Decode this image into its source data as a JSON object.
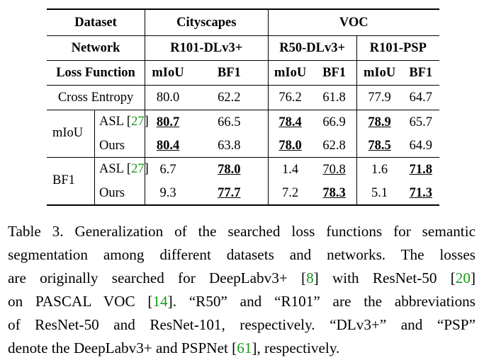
{
  "table": {
    "header": {
      "dataset_label": "Dataset",
      "cityscapes": "Cityscapes",
      "voc": "VOC",
      "network_label": "Network",
      "net1": "R101-DLv3+",
      "net2": "R50-DLv3+",
      "net3": "R101-PSP",
      "loss_label": "Loss Function",
      "miou": "mIoU",
      "bf1": "BF1"
    },
    "cross_entropy": {
      "label": "Cross Entropy",
      "values": [
        "80.0",
        "62.2",
        "76.2",
        "61.8",
        "77.9",
        "64.7"
      ]
    },
    "group_miou": {
      "label": "mIoU",
      "asl": {
        "name": "ASL [",
        "cite": "27",
        "close": "]",
        "values": [
          "80.7",
          "66.5",
          "78.4",
          "66.9",
          "78.9",
          "65.7"
        ]
      },
      "ours": {
        "name": "Ours",
        "values": [
          "80.4",
          "63.8",
          "78.0",
          "62.8",
          "78.5",
          "64.9"
        ]
      }
    },
    "group_bf1": {
      "label": "BF1",
      "asl": {
        "name": "ASL [",
        "cite": "27",
        "close": "]",
        "values": [
          "6.7",
          "78.0",
          "1.4",
          "70.8",
          "1.6",
          "71.8"
        ]
      },
      "ours": {
        "name": "Ours",
        "values": [
          "9.3",
          "77.7",
          "7.2",
          "78.3",
          "5.1",
          "71.3"
        ]
      }
    }
  },
  "caption": {
    "l1": "Table 3. Generalization of the searched loss functions for semantic",
    "l2": "segmentation among different datasets and networks.  The losses",
    "l3a": "are originally searched for DeepLabv3+ [",
    "l3c1": "8",
    "l3b": "] with ResNet-50 [",
    "l3c2": "20",
    "l3d": "]",
    "l4a": "on PASCAL VOC [",
    "l4c": "14",
    "l4b": "].  “R50” and “R101” are the abbreviations",
    "l5": "of ResNet-50 and ResNet-101, respectively.  “DLv3+” and “PSP”",
    "l6a": "denote the DeepLabv3+ and PSPNet [",
    "l6c": "61",
    "l6b": "], respectively."
  },
  "colors": {
    "citation": "#1a9a1a"
  }
}
